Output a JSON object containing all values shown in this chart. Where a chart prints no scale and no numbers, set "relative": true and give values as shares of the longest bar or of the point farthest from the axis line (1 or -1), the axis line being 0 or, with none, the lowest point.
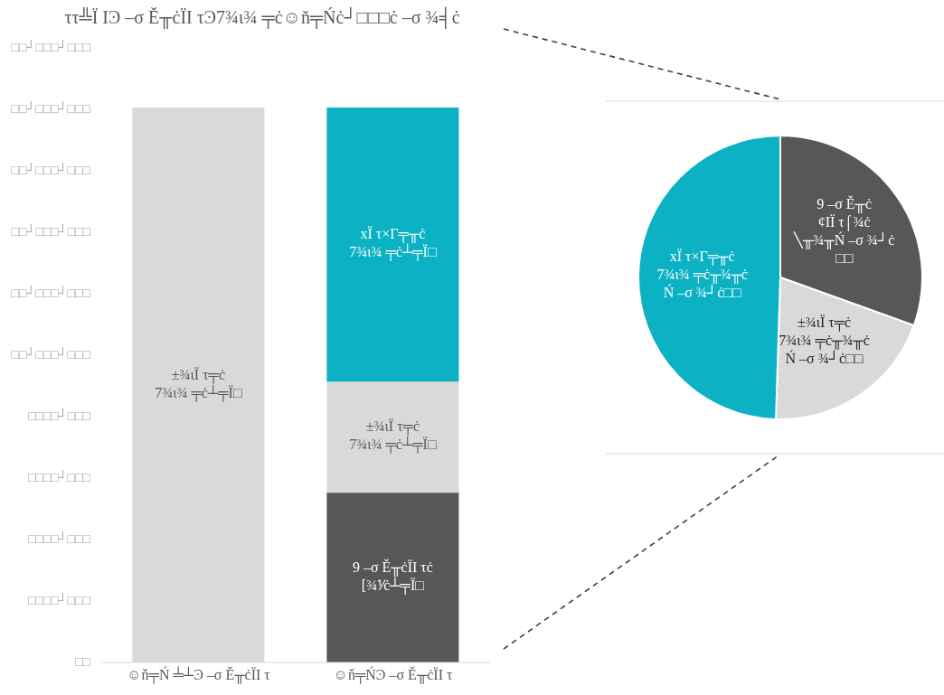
{
  "chart_data": [
    {
      "type": "bar",
      "title": "ττ╩Ï ΙϿ –σ Ě╥ċÏΙ τϿ7¾ι¾ ╤ċ☺ň╤Ńċ┘□□□ċ –σ ¾╡ċ",
      "categories": [
        "☺ň╤Ń ╧┴Ͽ –σ Ě╥ċÏΙ τ",
        "☺ň╤ŃϿ –σ Ě╥ċÏΙ τ"
      ],
      "stacked": true,
      "relative": true,
      "annotations": [
        "□□┘□□□┘□□□",
        "□□┘□□□┘□□□",
        "□□┘□□□┘□□□",
        "□□┘□□□┘□□□",
        "□□┘□□□┘□□□",
        "□□┘□□□┘□□□",
        "□□□□┘□□□",
        "□□□□┘□□□",
        "□□□□┘□□□",
        "□□□□┘□□□",
        "□□"
      ],
      "series": [
        {
          "name": "9 –σ Ě╥ċÏΙ τċ\n[¾⅟ċ┴╤Ϊ□",
          "color": "#575756",
          "values": [
            null,
            0.306
          ]
        },
        {
          "name": "±¾ιÏ τ╤ċ\n7¾ι¾ ╤ċ┴╤Ϊ□",
          "color": "#d9d9d9",
          "values": [
            1,
            0.2
          ]
        },
        {
          "name": "xÏ τ×Γ╤╥ċ\n7¾ι¾ ╤ċ┴╤Ϊ□",
          "color": "#0cb2c4",
          "values": [
            null,
            0.494
          ]
        }
      ]
    },
    {
      "type": "pie",
      "categories": [
        "9 –σ Ě╥ċ\n¢ΙÏ τ⌠¾ċ\n╲╥¾╥Ń –σ ¾┘ċ\n□□",
        "±¾ιÏ τ╤ċ\n7¾ι¾ ╤ċ╥¾╥ċ\nŃ –σ ¾┘ċ□□",
        "xÏ τ×Γ╤╥ċ\n7¾ι¾ ╤ċ╥¾╥ċ\nŃ –σ ¾┘ċ□□"
      ],
      "values": [
        30.5,
        20,
        49.5
      ],
      "colors": [
        "#575756",
        "#d9d9d9",
        "#0cb2c4"
      ]
    }
  ]
}
